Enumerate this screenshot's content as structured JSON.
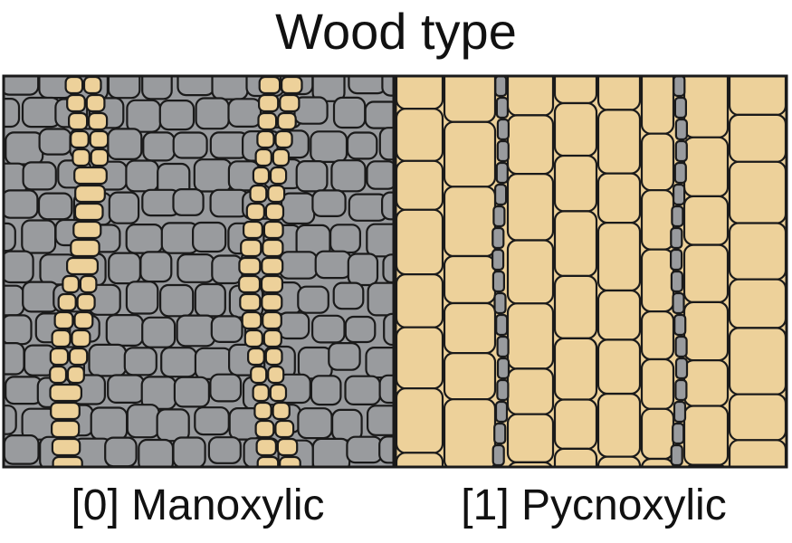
{
  "title": "Wood type",
  "panels": [
    {
      "label": "[0] Manoxylic",
      "background_color": "#999b9e",
      "strand_color": "#edd19a"
    },
    {
      "label": "[1] Pycnoxylic",
      "background_color": "#edd19a",
      "strand_color": "#999b9e"
    }
  ],
  "outline_color": "#1a1a1a"
}
